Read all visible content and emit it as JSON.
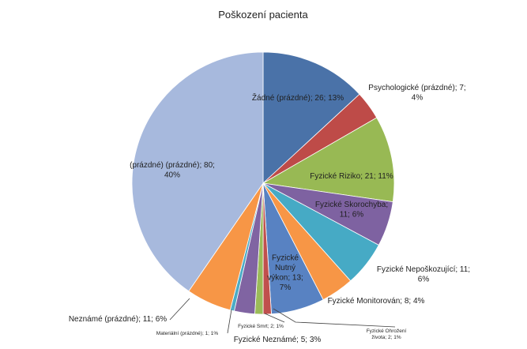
{
  "chart_data": {
    "type": "pie",
    "title": "Poškození pacienta",
    "slices": [
      {
        "name": "Žádné (prázdné)",
        "value": 26,
        "percent": "13%",
        "color": "#4a72a8",
        "label_lines": [
          "Žádné (prázdné); 26; 13%"
        ]
      },
      {
        "name": "Psychologické (prázdné)",
        "value": 7,
        "percent": "4%",
        "color": "#be4b48",
        "label_lines": [
          "Psychologické (prázdné); 7;",
          "4%"
        ]
      },
      {
        "name": "Fyzické Riziko",
        "value": 21,
        "percent": "11%",
        "color": "#98b954",
        "label_lines": [
          "Fyzické Riziko; 21; 11%"
        ]
      },
      {
        "name": "Fyzické Skorochyba",
        "value": 11,
        "percent": "6%",
        "color": "#7e62a1",
        "label_lines": [
          "Fyzické Skorochyba;",
          "11; 6%"
        ]
      },
      {
        "name": "Fyzické Nepoškozující",
        "value": 11,
        "percent": "6%",
        "color": "#46aac5",
        "label_lines": [
          "Fyzické Nepoškozující; 11;",
          "6%"
        ]
      },
      {
        "name": "Fyzické Monitorován",
        "value": 8,
        "percent": "4%",
        "color": "#f79646",
        "label_lines": [
          "Fyzické Monitorován; 8; 4%"
        ]
      },
      {
        "name": "Fyzické Nutný výkon",
        "value": 13,
        "percent": "7%",
        "color": "#5882c2",
        "label_lines": [
          "Fyzické",
          "Nutný",
          "výkon; 13;",
          "7%"
        ]
      },
      {
        "name": "Fyzické Ohrožení života",
        "value": 2,
        "percent": "1%",
        "color": "#c0504d",
        "label_lines": [
          "Fyzické Ohrožení",
          "života; 2; 1%"
        ]
      },
      {
        "name": "Fyzické Smrt",
        "value": 2,
        "percent": "1%",
        "color": "#9bbb59",
        "label_lines": [
          "Fyzické Smrt; 2; 1%"
        ]
      },
      {
        "name": "Fyzické Neznámé",
        "value": 5,
        "percent": "3%",
        "color": "#8064a2",
        "label_lines": [
          "Fyzické Neznámé; 5; 3%"
        ]
      },
      {
        "name": "Materiální (prázdné)",
        "value": 1,
        "percent": "1%",
        "color": "#4bacc6",
        "label_lines": [
          "Materiální (prázdné); 1; 1%"
        ]
      },
      {
        "name": "Neznámé (prázdné)",
        "value": 11,
        "percent": "6%",
        "color": "#f79646",
        "label_lines": [
          "Neznámé (prázdné); 11; 6%"
        ]
      },
      {
        "name": "(prázdné) (prázdné)",
        "value": 80,
        "percent": "40%",
        "color": "#a7b9dd",
        "label_lines": [
          "(prázdné) (prázdné); 80;",
          "40%"
        ]
      }
    ]
  }
}
